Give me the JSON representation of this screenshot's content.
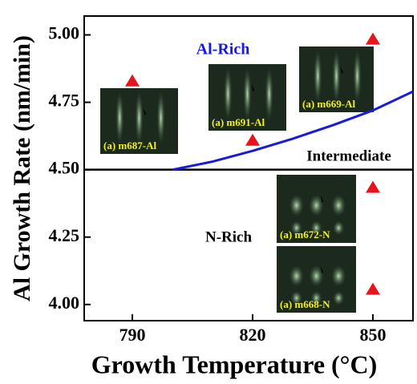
{
  "chart_data": {
    "type": "scatter",
    "y_label": "Al Growth Rate (nm/min)",
    "x_label": "Growth Temperature (°C)",
    "xlim": [
      778,
      860
    ],
    "ylim": [
      3.94,
      5.07
    ],
    "xticks": [
      790,
      820,
      850
    ],
    "yticks": [
      {
        "value": 4,
        "label": "4.00"
      },
      {
        "value": 4.25,
        "label": "4.25"
      },
      {
        "value": 4.5,
        "label": "4.50"
      },
      {
        "value": 4.75,
        "label": "4.75"
      },
      {
        "value": 5,
        "label": "5.00"
      }
    ],
    "points": {
      "color": "#e8141c",
      "x": [
        790,
        820,
        850,
        850,
        850
      ],
      "y": [
        4.83,
        4.61,
        4.985,
        4.435,
        4.057
      ]
    },
    "curve": {
      "color": "#1a1adc",
      "x": [
        800,
        810,
        820,
        830,
        840,
        850,
        860
      ],
      "y": [
        4.5,
        4.53,
        4.57,
        4.615,
        4.665,
        4.72,
        4.79
      ]
    },
    "boundary": 4.5,
    "annotations": [
      {
        "text": "Al-Rich",
        "color": "#1a1adc"
      },
      {
        "text": "Intermediate",
        "color": "#000000"
      },
      {
        "text": "N-Rich",
        "color": "#000000"
      }
    ],
    "insets": [
      "(a) m687-Al",
      "(a) m691-Al",
      "(a) m669-Al",
      "(a) m672-N",
      "(a) m668-N"
    ]
  }
}
